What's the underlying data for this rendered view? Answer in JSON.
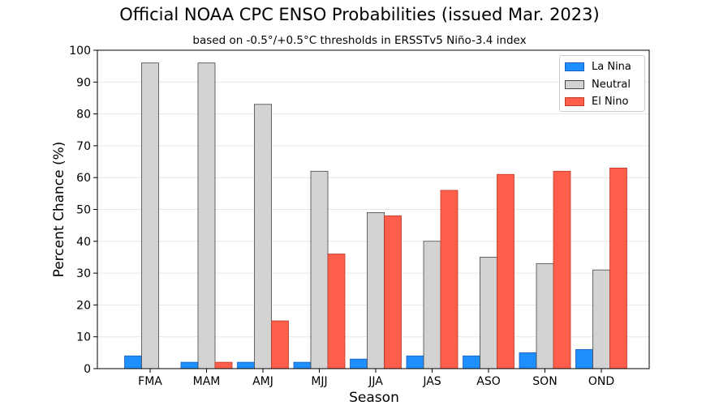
{
  "chart_data": {
    "type": "bar",
    "title": "Official NOAA CPC ENSO Probabilities (issued Mar. 2023)",
    "subtitle": "based on -0.5°/+0.5°C thresholds in ERSSTv5 Niño-3.4 index",
    "xlabel": "Season",
    "ylabel": "Percent Chance (%)",
    "ylim": [
      0,
      100
    ],
    "yticks": [
      0,
      10,
      20,
      30,
      40,
      50,
      60,
      70,
      80,
      90,
      100
    ],
    "grid": "horizontal",
    "legend_position": "top-right",
    "categories": [
      "FMA",
      "MAM",
      "AMJ",
      "MJJ",
      "JJA",
      "JAS",
      "ASO",
      "SON",
      "OND"
    ],
    "series": [
      {
        "name": "La Nina",
        "color": "#1f8fff",
        "edge": "#1a5fc0",
        "values": [
          4,
          2,
          2,
          2,
          3,
          4,
          4,
          5,
          6
        ]
      },
      {
        "name": "Neutral",
        "color": "#d3d3d3",
        "edge": "#444444",
        "values": [
          96,
          96,
          83,
          62,
          49,
          40,
          35,
          33,
          31
        ]
      },
      {
        "name": "El Nino",
        "color": "#ff5f4a",
        "edge": "#c0392b",
        "values": [
          0,
          2,
          15,
          36,
          48,
          56,
          61,
          62,
          63
        ]
      }
    ]
  }
}
